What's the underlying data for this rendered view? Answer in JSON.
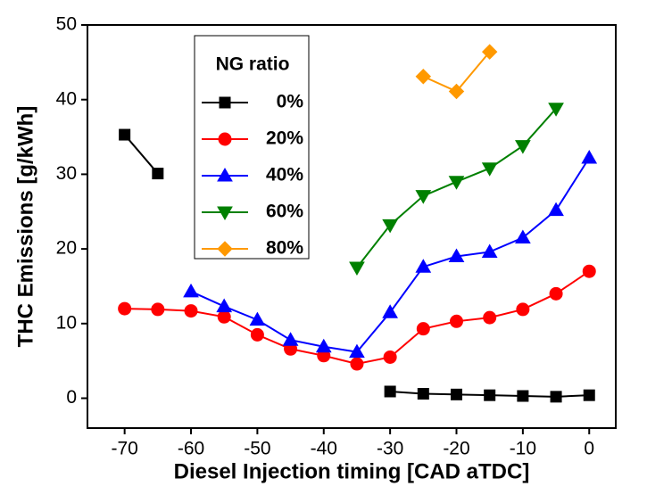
{
  "chart_data": {
    "type": "line",
    "x_label": "Diesel Injection timing [CAD aTDC]",
    "y_label": "THC Emissions [g/kWh]",
    "legend_title": "NG ratio",
    "x": [
      -70,
      -65,
      -60,
      -55,
      -50,
      -45,
      -40,
      -35,
      -30,
      -25,
      -20,
      -15,
      -10,
      -5,
      0
    ],
    "series": [
      {
        "name": "0%",
        "color": "#000000",
        "marker": "square",
        "values": [
          35.3,
          30.1,
          null,
          null,
          null,
          null,
          null,
          null,
          0.9,
          0.6,
          0.5,
          0.4,
          0.3,
          0.2,
          0.4
        ]
      },
      {
        "name": "20%",
        "color": "#ff0000",
        "marker": "circle",
        "values": [
          12.0,
          11.9,
          11.7,
          10.9,
          8.5,
          6.6,
          5.7,
          4.6,
          5.5,
          9.3,
          10.3,
          10.8,
          11.9,
          14.0,
          17.0
        ]
      },
      {
        "name": "40%",
        "color": "#0000ff",
        "marker": "triangle-up",
        "values": [
          null,
          null,
          14.3,
          12.3,
          10.5,
          7.8,
          6.9,
          6.2,
          11.5,
          17.6,
          19.0,
          19.6,
          21.5,
          25.2,
          32.2
        ]
      },
      {
        "name": "60%",
        "color": "#008000",
        "marker": "triangle-down",
        "values": [
          null,
          null,
          null,
          null,
          null,
          null,
          null,
          17.5,
          23.2,
          27.1,
          29.0,
          30.8,
          33.8,
          38.8,
          null
        ]
      },
      {
        "name": "80%",
        "color": "#ff9900",
        "marker": "diamond",
        "values": [
          null,
          null,
          null,
          null,
          null,
          null,
          null,
          null,
          null,
          43.1,
          41.1,
          46.4,
          null,
          null,
          null
        ]
      }
    ],
    "xlim": [
      -75.6,
      4
    ],
    "ylim": [
      -4,
      50
    ],
    "xticks": [
      -70,
      -60,
      -50,
      -40,
      -30,
      -20,
      -10,
      0
    ],
    "yticks": [
      0,
      10,
      20,
      30,
      40,
      50
    ],
    "grid": false
  }
}
